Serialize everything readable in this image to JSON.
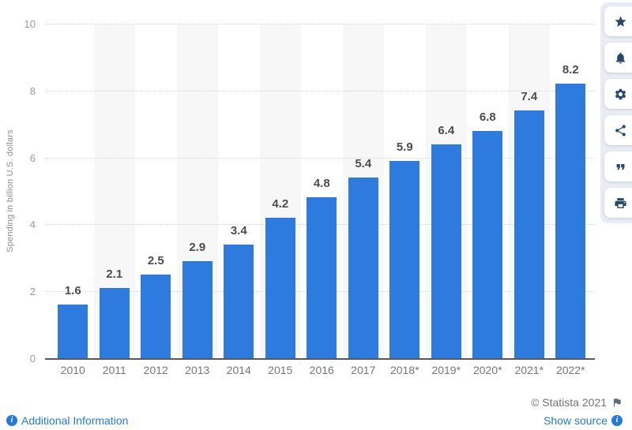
{
  "chart_data": {
    "type": "bar",
    "title": "",
    "categories": [
      "2010",
      "2011",
      "2012",
      "2013",
      "2014",
      "2015",
      "2016",
      "2017",
      "2018*",
      "2019*",
      "2020*",
      "2021*",
      "2022*"
    ],
    "values": [
      1.6,
      2.1,
      2.5,
      2.9,
      3.4,
      4.2,
      4.8,
      5.4,
      5.9,
      6.4,
      6.8,
      7.4,
      8.2
    ],
    "xlabel": "",
    "ylabel": "Spending in billion U.S. dollars",
    "ylim": [
      0,
      10
    ],
    "yticks": [
      0,
      2,
      4,
      6,
      8,
      10
    ],
    "grid": "horizontal-dotted",
    "legend": "none",
    "bar_color": "#2d7bde",
    "striped_category_indices": [
      1,
      3,
      5,
      7,
      9,
      11
    ],
    "value_labels_shown": true
  },
  "sidebar": {
    "icons": [
      {
        "name": "star-icon"
      },
      {
        "name": "bell-icon"
      },
      {
        "name": "gear-icon"
      },
      {
        "name": "share-icon"
      },
      {
        "name": "quote-icon"
      },
      {
        "name": "print-icon"
      }
    ]
  },
  "footer": {
    "additional_information": "Additional Information",
    "copyright": "© Statista 2021",
    "show_source": "Show source"
  },
  "colors": {
    "bar": "#2d7bde",
    "link": "#2379e0",
    "icon": "#27496b",
    "copyright_text": "#737373",
    "stripe": "#f7f7f8"
  }
}
